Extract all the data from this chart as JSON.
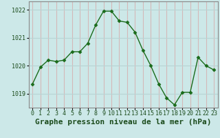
{
  "x": [
    0,
    1,
    2,
    3,
    4,
    5,
    6,
    7,
    8,
    9,
    10,
    11,
    12,
    13,
    14,
    15,
    16,
    17,
    18,
    19,
    20,
    21,
    22,
    23
  ],
  "y": [
    1019.35,
    1019.95,
    1020.2,
    1020.15,
    1020.2,
    1020.5,
    1020.5,
    1020.8,
    1021.45,
    1021.95,
    1021.95,
    1021.6,
    1021.55,
    1021.2,
    1020.55,
    1020.0,
    1019.35,
    1018.85,
    1018.6,
    1019.05,
    1019.05,
    1020.3,
    1020.0,
    1019.85
  ],
  "line_color": "#1a6b1a",
  "marker": "D",
  "marker_size": 2.5,
  "bg_color": "#cce8e8",
  "grid_color_h": "#b8d4d4",
  "grid_color_v": "#d4b8b8",
  "label": "Graphe pression niveau de la mer (hPa)",
  "ylim": [
    1018.5,
    1022.3
  ],
  "yticks": [
    1019,
    1020,
    1021,
    1022
  ],
  "xticks": [
    0,
    1,
    2,
    3,
    4,
    5,
    6,
    7,
    8,
    9,
    10,
    11,
    12,
    13,
    14,
    15,
    16,
    17,
    18,
    19,
    20,
    21,
    22,
    23
  ],
  "tick_fontsize": 6,
  "label_fontsize": 8,
  "axis_color": "#888888"
}
